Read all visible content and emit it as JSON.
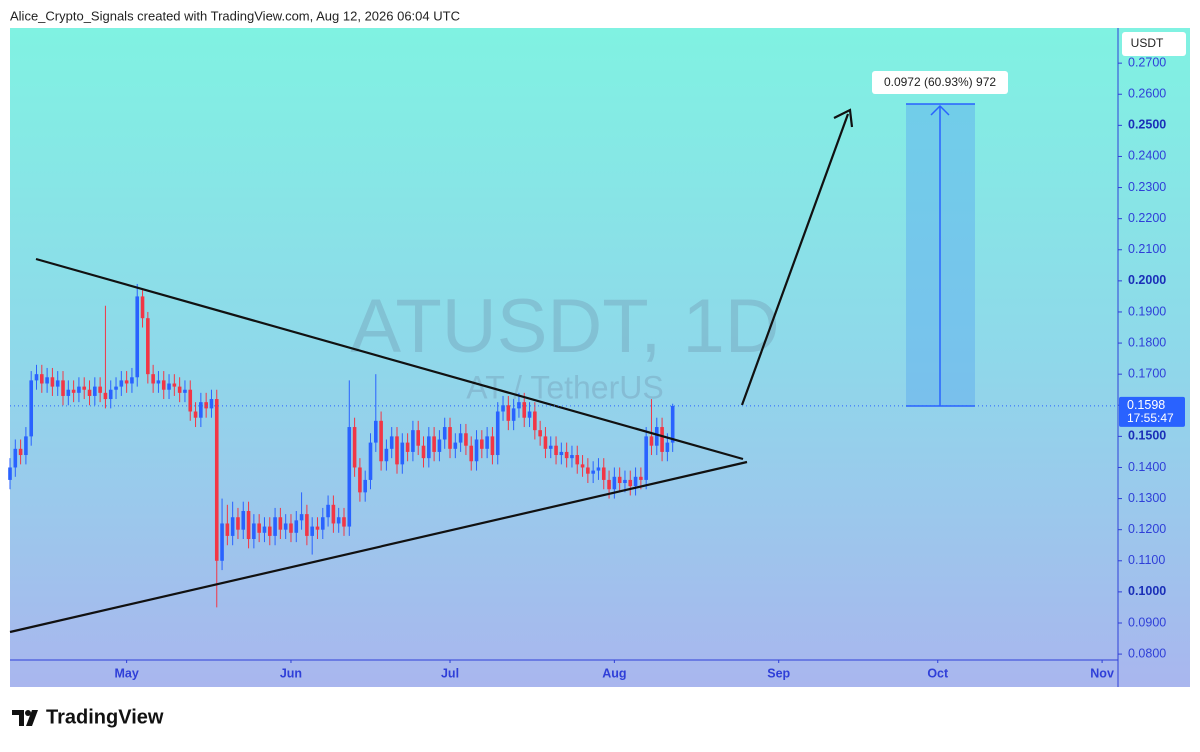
{
  "header": {
    "attribution": "Alice_Crypto_Signals created with TradingView.com, Aug 12, 2026 06:04 UTC"
  },
  "footer": {
    "logo": "TradingView"
  },
  "chart_data": {
    "type": "candlestick",
    "title": "ATUSDT, 1D",
    "subtitle": "AT / TetherUS",
    "currency": "USDT",
    "price_label": "0.1598",
    "countdown": "17:55:47",
    "measure_label": "0.0972 (60.93%) 972",
    "up_color": "#2962ff",
    "down_color": "#f23645",
    "xlim": [
      99,
      308
    ],
    "xticks": [
      {
        "value": 121,
        "label": "May"
      },
      {
        "value": 152,
        "label": "Jun"
      },
      {
        "value": 182,
        "label": "Jul"
      },
      {
        "value": 213,
        "label": "Aug"
      },
      {
        "value": 244,
        "label": "Sep"
      },
      {
        "value": 274,
        "label": "Oct"
      },
      {
        "value": 305,
        "label": "Nov"
      }
    ],
    "ylim": [
      0.0781,
      0.2813
    ],
    "yticks": [
      {
        "value": 0.08,
        "label": "0.0800"
      },
      {
        "value": 0.09,
        "label": "0.0900"
      },
      {
        "value": 0.1,
        "label": "0.1000"
      },
      {
        "value": 0.11,
        "label": "0.1100"
      },
      {
        "value": 0.12,
        "label": "0.1200"
      },
      {
        "value": 0.13,
        "label": "0.1300"
      },
      {
        "value": 0.14,
        "label": "0.1400"
      },
      {
        "value": 0.15,
        "label": "0.1500"
      },
      {
        "value": 0.16,
        "label": "0.1600"
      },
      {
        "value": 0.17,
        "label": "0.1700"
      },
      {
        "value": 0.18,
        "label": "0.1800"
      },
      {
        "value": 0.19,
        "label": "0.1900"
      },
      {
        "value": 0.2,
        "label": "0.2000"
      },
      {
        "value": 0.21,
        "label": "0.2100"
      },
      {
        "value": 0.22,
        "label": "0.2200"
      },
      {
        "value": 0.23,
        "label": "0.2300"
      },
      {
        "value": 0.24,
        "label": "0.2400"
      },
      {
        "value": 0.25,
        "label": "0.2500"
      },
      {
        "value": 0.26,
        "label": "0.2600"
      },
      {
        "value": 0.27,
        "label": "0.2700"
      }
    ],
    "x": [
      99,
      100,
      101,
      102,
      103,
      104,
      105,
      106,
      107,
      108,
      109,
      110,
      111,
      112,
      113,
      114,
      115,
      116,
      117,
      118,
      119,
      120,
      121,
      122,
      123,
      124,
      125,
      126,
      127,
      128,
      129,
      130,
      131,
      132,
      133,
      134,
      135,
      136,
      137,
      138,
      139,
      140,
      141,
      142,
      143,
      144,
      145,
      146,
      147,
      148,
      149,
      150,
      151,
      152,
      153,
      154,
      155,
      156,
      157,
      158,
      159,
      160,
      161,
      162,
      163,
      164,
      165,
      166,
      167,
      168,
      169,
      170,
      171,
      172,
      173,
      174,
      175,
      176,
      177,
      178,
      179,
      180,
      181,
      182,
      183,
      184,
      185,
      186,
      187,
      188,
      189,
      190,
      191,
      192,
      193,
      194,
      195,
      196,
      197,
      198,
      199,
      200,
      201,
      202,
      203,
      204,
      205,
      206,
      207,
      208,
      209,
      210,
      211,
      212,
      213,
      214,
      215,
      216,
      217,
      218,
      219,
      220,
      221,
      222,
      223,
      224
    ],
    "open": [
      0.136,
      0.14,
      0.146,
      0.144,
      0.15,
      0.168,
      0.17,
      0.167,
      0.169,
      0.166,
      0.168,
      0.163,
      0.165,
      0.164,
      0.166,
      0.165,
      0.163,
      0.166,
      0.164,
      0.162,
      0.165,
      0.166,
      0.168,
      0.167,
      0.169,
      0.195,
      0.188,
      0.17,
      0.167,
      0.168,
      0.165,
      0.167,
      0.166,
      0.164,
      0.165,
      0.158,
      0.156,
      0.161,
      0.159,
      0.162,
      0.11,
      0.122,
      0.118,
      0.124,
      0.12,
      0.126,
      0.117,
      0.122,
      0.119,
      0.121,
      0.118,
      0.124,
      0.12,
      0.122,
      0.119,
      0.123,
      0.125,
      0.118,
      0.121,
      0.12,
      0.124,
      0.128,
      0.122,
      0.124,
      0.121,
      0.153,
      0.14,
      0.132,
      0.136,
      0.148,
      0.155,
      0.142,
      0.146,
      0.15,
      0.141,
      0.148,
      0.145,
      0.152,
      0.147,
      0.143,
      0.15,
      0.145,
      0.149,
      0.153,
      0.146,
      0.148,
      0.151,
      0.147,
      0.142,
      0.149,
      0.146,
      0.15,
      0.144,
      0.158,
      0.16,
      0.155,
      0.159,
      0.161,
      0.156,
      0.158,
      0.152,
      0.15,
      0.146,
      0.147,
      0.144,
      0.145,
      0.143,
      0.144,
      0.141,
      0.14,
      0.138,
      0.139,
      0.14,
      0.136,
      0.133,
      0.137,
      0.135,
      0.136,
      0.134,
      0.137,
      0.136,
      0.15,
      0.147,
      0.153,
      0.145,
      0.148
    ],
    "high": [
      0.143,
      0.149,
      0.149,
      0.153,
      0.171,
      0.173,
      0.173,
      0.172,
      0.172,
      0.171,
      0.171,
      0.168,
      0.168,
      0.169,
      0.169,
      0.168,
      0.169,
      0.169,
      0.192,
      0.168,
      0.169,
      0.171,
      0.171,
      0.172,
      0.199,
      0.197,
      0.19,
      0.173,
      0.171,
      0.171,
      0.17,
      0.17,
      0.169,
      0.168,
      0.168,
      0.161,
      0.164,
      0.164,
      0.165,
      0.165,
      0.13,
      0.128,
      0.129,
      0.127,
      0.129,
      0.129,
      0.125,
      0.125,
      0.124,
      0.124,
      0.127,
      0.127,
      0.125,
      0.125,
      0.126,
      0.132,
      0.128,
      0.124,
      0.124,
      0.127,
      0.131,
      0.131,
      0.127,
      0.127,
      0.168,
      0.156,
      0.143,
      0.139,
      0.151,
      0.17,
      0.158,
      0.149,
      0.153,
      0.153,
      0.151,
      0.151,
      0.155,
      0.155,
      0.15,
      0.153,
      0.153,
      0.152,
      0.156,
      0.156,
      0.151,
      0.154,
      0.154,
      0.15,
      0.152,
      0.152,
      0.153,
      0.153,
      0.161,
      0.163,
      0.163,
      0.162,
      0.164,
      0.164,
      0.161,
      0.161,
      0.155,
      0.153,
      0.15,
      0.15,
      0.148,
      0.148,
      0.147,
      0.147,
      0.144,
      0.143,
      0.142,
      0.143,
      0.143,
      0.139,
      0.14,
      0.14,
      0.139,
      0.139,
      0.14,
      0.14,
      0.153,
      0.162,
      0.156,
      0.156,
      0.151,
      0.1605
    ],
    "low": [
      0.133,
      0.137,
      0.141,
      0.141,
      0.147,
      0.165,
      0.164,
      0.164,
      0.163,
      0.163,
      0.16,
      0.16,
      0.161,
      0.161,
      0.162,
      0.16,
      0.16,
      0.161,
      0.159,
      0.159,
      0.162,
      0.163,
      0.164,
      0.164,
      0.166,
      0.185,
      0.167,
      0.164,
      0.164,
      0.162,
      0.162,
      0.163,
      0.161,
      0.161,
      0.155,
      0.153,
      0.153,
      0.156,
      0.156,
      0.095,
      0.107,
      0.115,
      0.115,
      0.117,
      0.117,
      0.114,
      0.114,
      0.116,
      0.116,
      0.115,
      0.115,
      0.117,
      0.117,
      0.116,
      0.116,
      0.12,
      0.115,
      0.112,
      0.117,
      0.117,
      0.121,
      0.119,
      0.119,
      0.118,
      0.118,
      0.137,
      0.129,
      0.129,
      0.133,
      0.145,
      0.139,
      0.139,
      0.143,
      0.138,
      0.138,
      0.142,
      0.142,
      0.144,
      0.14,
      0.14,
      0.142,
      0.142,
      0.146,
      0.143,
      0.143,
      0.145,
      0.144,
      0.139,
      0.139,
      0.143,
      0.143,
      0.141,
      0.141,
      0.155,
      0.152,
      0.152,
      0.156,
      0.153,
      0.153,
      0.149,
      0.147,
      0.143,
      0.143,
      0.141,
      0.141,
      0.14,
      0.14,
      0.138,
      0.137,
      0.135,
      0.135,
      0.136,
      0.133,
      0.13,
      0.13,
      0.132,
      0.132,
      0.131,
      0.131,
      0.133,
      0.133,
      0.144,
      0.144,
      0.142,
      0.142,
      0.145
    ],
    "close": [
      0.14,
      0.146,
      0.144,
      0.15,
      0.168,
      0.17,
      0.167,
      0.169,
      0.166,
      0.168,
      0.163,
      0.165,
      0.164,
      0.166,
      0.165,
      0.163,
      0.166,
      0.164,
      0.162,
      0.165,
      0.166,
      0.168,
      0.167,
      0.169,
      0.195,
      0.188,
      0.17,
      0.167,
      0.168,
      0.165,
      0.167,
      0.166,
      0.164,
      0.165,
      0.158,
      0.156,
      0.161,
      0.159,
      0.162,
      0.11,
      0.122,
      0.118,
      0.124,
      0.12,
      0.126,
      0.117,
      0.122,
      0.119,
      0.121,
      0.118,
      0.124,
      0.12,
      0.122,
      0.119,
      0.123,
      0.125,
      0.118,
      0.121,
      0.12,
      0.124,
      0.128,
      0.122,
      0.124,
      0.121,
      0.153,
      0.14,
      0.132,
      0.136,
      0.148,
      0.155,
      0.142,
      0.146,
      0.15,
      0.141,
      0.148,
      0.145,
      0.152,
      0.147,
      0.143,
      0.15,
      0.145,
      0.149,
      0.153,
      0.146,
      0.148,
      0.151,
      0.147,
      0.142,
      0.149,
      0.146,
      0.15,
      0.144,
      0.158,
      0.16,
      0.155,
      0.159,
      0.161,
      0.156,
      0.158,
      0.152,
      0.15,
      0.146,
      0.147,
      0.144,
      0.145,
      0.143,
      0.144,
      0.141,
      0.14,
      0.138,
      0.139,
      0.14,
      0.136,
      0.133,
      0.137,
      0.135,
      0.136,
      0.134,
      0.137,
      0.136,
      0.15,
      0.147,
      0.153,
      0.145,
      0.148,
      0.1598
    ]
  }
}
